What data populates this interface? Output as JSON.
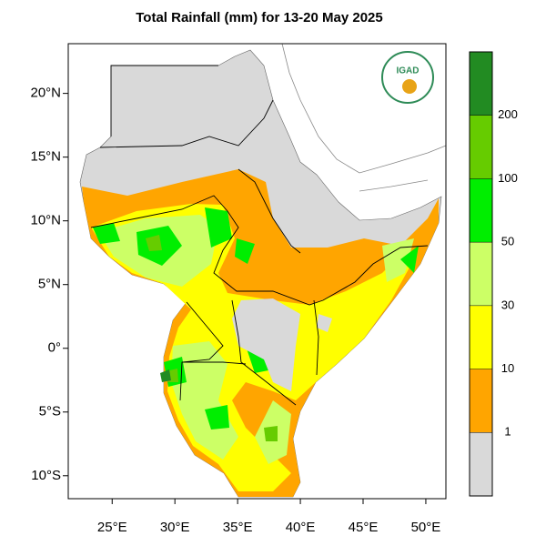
{
  "title": "Total Rainfall (mm) for 13-20 May 2025",
  "logo": "IGAD",
  "map": {
    "xlim": [
      21.5,
      51.6
    ],
    "ylim": [
      -11.8,
      23.9
    ],
    "xticks": [
      {
        "value": 25,
        "label": "25°E"
      },
      {
        "value": 30,
        "label": "30°E"
      },
      {
        "value": 35,
        "label": "35°E"
      },
      {
        "value": 40,
        "label": "40°E"
      },
      {
        "value": 45,
        "label": "45°E"
      },
      {
        "value": 50,
        "label": "50°E"
      }
    ],
    "yticks": [
      {
        "value": 20,
        "label": "20°N"
      },
      {
        "value": 15,
        "label": "15°N"
      },
      {
        "value": 10,
        "label": "10°N"
      },
      {
        "value": 5,
        "label": "5°N"
      },
      {
        "value": 0,
        "label": "0°"
      },
      {
        "value": -5,
        "label": "5°S"
      },
      {
        "value": -10,
        "label": "10°S"
      }
    ]
  },
  "legend": {
    "levels": [
      1,
      10,
      30,
      50,
      100,
      200
    ],
    "colors": [
      "#d9d9d9",
      "#ffa500",
      "#ffff00",
      "#ccff66",
      "#00ee00",
      "#66cc00",
      "#228b22"
    ]
  }
}
